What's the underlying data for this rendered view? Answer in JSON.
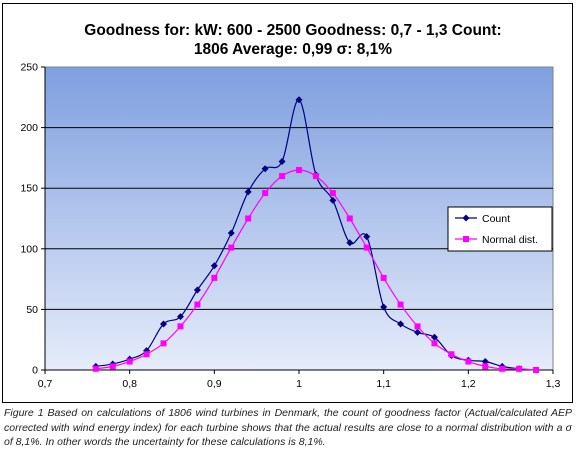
{
  "chart_data": {
    "type": "line",
    "title_line1": "Goodness for: kW: 600 - 2500 Goodness: 0,7 - 1,3 Count:",
    "title_line2": "1806 Average: 0,99 σ: 8,1%",
    "xlabel": "",
    "ylabel": "",
    "xlim": [
      0.7,
      1.3
    ],
    "ylim": [
      0,
      250
    ],
    "x_ticks": [
      "0,7",
      "0,8",
      "0,9",
      "1",
      "1,1",
      "1,2",
      "1,3"
    ],
    "x_tick_values": [
      0.7,
      0.8,
      0.9,
      1.0,
      1.1,
      1.2,
      1.3
    ],
    "y_ticks": [
      "0",
      "50",
      "100",
      "150",
      "200",
      "250"
    ],
    "y_tick_values": [
      0,
      50,
      100,
      150,
      200,
      250
    ],
    "grid": "horizontal",
    "legend_position": "right",
    "series": [
      {
        "name": "Count",
        "color": "#000080",
        "marker": "diamond",
        "x": [
          0.76,
          0.78,
          0.8,
          0.82,
          0.84,
          0.86,
          0.88,
          0.9,
          0.92,
          0.94,
          0.96,
          0.98,
          1.0,
          1.02,
          1.04,
          1.06,
          1.08,
          1.1,
          1.12,
          1.14,
          1.16,
          1.18,
          1.2,
          1.22,
          1.24,
          1.26,
          1.28
        ],
        "values": [
          3,
          5,
          9,
          16,
          38,
          44,
          66,
          86,
          113,
          147,
          166,
          172,
          223,
          161,
          140,
          105,
          110,
          52,
          38,
          31,
          27,
          12,
          8,
          7,
          3,
          1,
          0
        ]
      },
      {
        "name": "Normal dist.",
        "color": "#ff00ff",
        "marker": "square",
        "x": [
          0.76,
          0.78,
          0.8,
          0.82,
          0.84,
          0.86,
          0.88,
          0.9,
          0.92,
          0.94,
          0.96,
          0.98,
          1.0,
          1.02,
          1.04,
          1.06,
          1.08,
          1.1,
          1.12,
          1.14,
          1.16,
          1.18,
          1.2,
          1.22,
          1.24,
          1.26,
          1.28
        ],
        "values": [
          1,
          3,
          7,
          13,
          22,
          36,
          54,
          76,
          101,
          125,
          146,
          160,
          165,
          160,
          146,
          125,
          101,
          76,
          54,
          36,
          22,
          13,
          7,
          3,
          1,
          1,
          0
        ]
      }
    ],
    "colors": {
      "plot_top": "#7f9fdf",
      "plot_bottom": "#e6ecfa",
      "gridline": "#000000"
    }
  },
  "caption": "Figure 1 Based on calculations of 1806 wind turbines in Denmark, the count of goodness factor (Actual/calculated AEP corrected with wind energy index) for each turbine shows that the actual results are close to a normal distribution with a σ of 8,1%. In other words the uncertainty for these calculations is 8,1%."
}
